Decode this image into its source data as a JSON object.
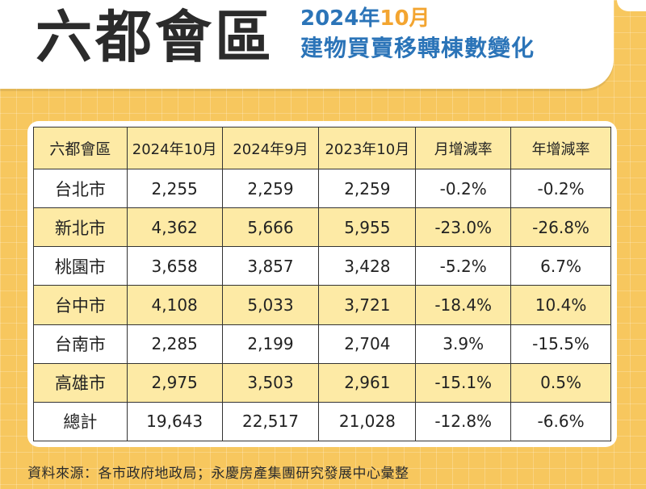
{
  "header": {
    "title": "六都會區",
    "subtitle_year": "2024年",
    "subtitle_month": "10月",
    "subtitle_line2": "建物買賣移轉棟數變化"
  },
  "chart_data": {
    "type": "table",
    "columns": [
      "六都會區",
      "2024年10月",
      "2024年9月",
      "2023年10月",
      "月增減率",
      "年增減率"
    ],
    "rows": [
      [
        "台北市",
        "2,255",
        "2,259",
        "2,259",
        "-0.2%",
        "-0.2%"
      ],
      [
        "新北市",
        "4,362",
        "5,666",
        "5,955",
        "-23.0%",
        "-26.8%"
      ],
      [
        "桃園市",
        "3,658",
        "3,857",
        "3,428",
        "-5.2%",
        "6.7%"
      ],
      [
        "台中市",
        "4,108",
        "5,033",
        "3,721",
        "-18.4%",
        "10.4%"
      ],
      [
        "台南市",
        "2,285",
        "2,199",
        "2,704",
        "3.9%",
        "-15.5%"
      ],
      [
        "高雄市",
        "2,975",
        "3,503",
        "2,961",
        "-15.1%",
        "0.5%"
      ],
      [
        "總計",
        "19,643",
        "22,517",
        "21,028",
        "-12.8%",
        "-6.6%"
      ]
    ]
  },
  "footer": {
    "source": "資料來源：各市政府地政局；永慶房產集團研究發展中心彙整"
  },
  "colors": {
    "background": "#f7c75e",
    "header_row": "#fdeaa5",
    "title_blue": "#2b74b8",
    "title_orange": "#f3a531"
  }
}
